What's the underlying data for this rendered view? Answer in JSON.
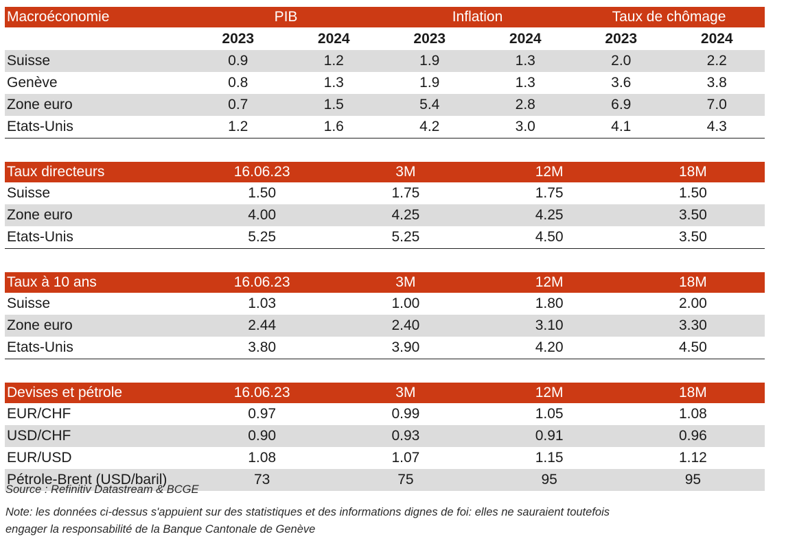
{
  "macro": {
    "header": {
      "title": "Macroéconomie",
      "pib": "PIB",
      "inflation": "Inflation",
      "chomage": "Taux de chômage"
    },
    "years": [
      "2023",
      "2024",
      "2023",
      "2024",
      "2023",
      "2024"
    ],
    "rows": [
      {
        "label": "Suisse",
        "values": [
          "0.9",
          "1.2",
          "1.9",
          "1.3",
          "2.0",
          "2.2"
        ]
      },
      {
        "label": "Genève",
        "values": [
          "0.8",
          "1.3",
          "1.9",
          "1.3",
          "3.6",
          "3.8"
        ]
      },
      {
        "label": "Zone euro",
        "values": [
          "0.7",
          "1.5",
          "5.4",
          "2.8",
          "6.9",
          "7.0"
        ]
      },
      {
        "label": "Etats-Unis",
        "values": [
          "1.2",
          "1.6",
          "4.2",
          "3.0",
          "4.1",
          "4.3"
        ]
      }
    ]
  },
  "directeurs": {
    "header": [
      "Taux directeurs",
      "16.06.23",
      "3M",
      "12M",
      "18M"
    ],
    "rows": [
      {
        "label": "Suisse",
        "values": [
          "1.50",
          "1.75",
          "1.75",
          "1.50"
        ]
      },
      {
        "label": "Zone euro",
        "values": [
          "4.00",
          "4.25",
          "4.25",
          "3.50"
        ]
      },
      {
        "label": "Etats-Unis",
        "values": [
          "5.25",
          "5.25",
          "4.50",
          "3.50"
        ]
      }
    ]
  },
  "taux10": {
    "header": [
      "Taux à 10 ans",
      "16.06.23",
      "3M",
      "12M",
      "18M"
    ],
    "rows": [
      {
        "label": "Suisse",
        "values": [
          "1.03",
          "1.00",
          "1.80",
          "2.00"
        ]
      },
      {
        "label": "Zone euro",
        "values": [
          "2.44",
          "2.40",
          "3.10",
          "3.30"
        ]
      },
      {
        "label": "Etats-Unis",
        "values": [
          "3.80",
          "3.90",
          "4.20",
          "4.50"
        ]
      }
    ]
  },
  "devises": {
    "header": [
      "Devises et pétrole",
      "16.06.23",
      "3M",
      "12M",
      "18M"
    ],
    "rows": [
      {
        "label": "EUR/CHF",
        "values": [
          "0.97",
          "0.99",
          "1.05",
          "1.08"
        ]
      },
      {
        "label": "USD/CHF",
        "values": [
          "0.90",
          "0.93",
          "0.91",
          "0.96"
        ]
      },
      {
        "label": "EUR/USD",
        "values": [
          "1.08",
          "1.07",
          "1.15",
          "1.12"
        ]
      },
      {
        "label": "Pétrole-Brent (USD/baril)",
        "values": [
          "73",
          "75",
          "95",
          "95"
        ]
      }
    ]
  },
  "footer": {
    "source": "Source : Refinitiv Datastream & BCGE",
    "note_line1": "Note: les données ci-dessus s'appuient sur des statistiques et des informations dignes de foi: elles ne sauraient toutefois",
    "note_line2": "engager la responsabilité de la Banque Cantonale de Genève"
  },
  "colors": {
    "header_bg": "#cc3a14",
    "shade_bg": "#dcdcdc"
  }
}
